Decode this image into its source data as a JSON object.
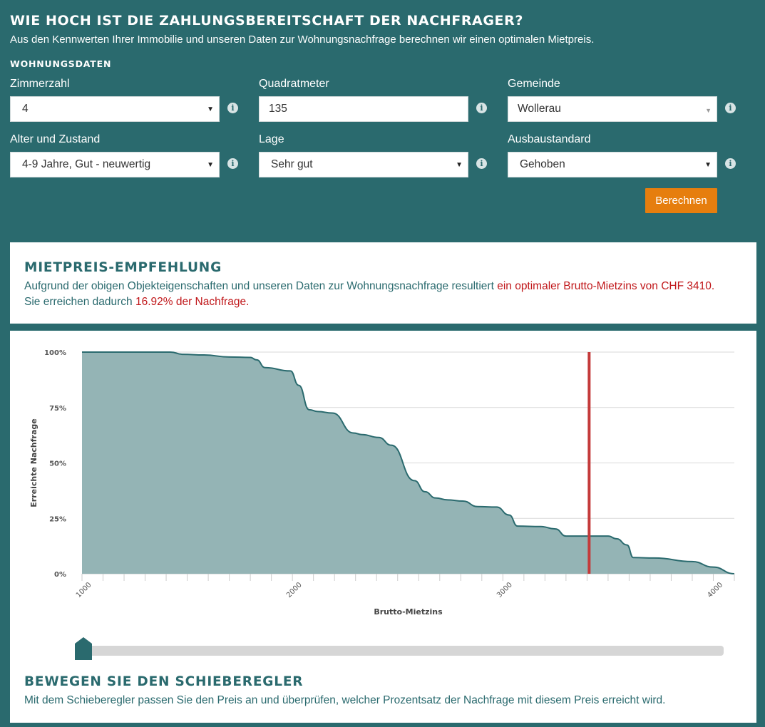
{
  "header": {
    "title": "WIE HOCH IST DIE ZAHLUNGSBEREITSCHAFT DER NACHFRAGER?",
    "subtitle": "Aus den Kennwerten Ihrer Immobilie und unseren Daten zur Wohnungsnachfrage berechnen wir einen optimalen Mietpreis.",
    "section_label": "WOHNUNGSDATEN"
  },
  "form": {
    "zimmerzahl": {
      "label": "Zimmerzahl",
      "value": "4"
    },
    "quadratmeter": {
      "label": "Quadratmeter",
      "value": "135"
    },
    "gemeinde": {
      "label": "Gemeinde",
      "value": "Wollerau"
    },
    "alter": {
      "label": "Alter und Zustand",
      "value": "4-9 Jahre, Gut - neuwertig"
    },
    "lage": {
      "label": "Lage",
      "value": "Sehr gut"
    },
    "ausbau": {
      "label": "Ausbaustandard",
      "value": "Gehoben"
    },
    "info_glyph": "i",
    "calc_button": "Berechnen"
  },
  "recommendation": {
    "heading": "MIETPREIS-EMPFEHLUNG",
    "text_1": "Aufgrund der obigen Objekteigenschaften und unseren Daten zur Wohnungsnachfrage resultiert ",
    "text_1_red": "ein optimaler Brutto-Mietzins von CHF 3410.",
    "text_2": "Sie erreichen dadurch ",
    "text_2_red": "16.92% der Nachfrage."
  },
  "slider_section": {
    "heading": "BEWEGEN SIE DEN SCHIEBEREGLER",
    "text": "Mit dem Schieberegler passen Sie den Preis an und überprüfen, welcher Prozentsatz der Nachfrage mit diesem Preis erreicht wird.",
    "value_fraction": 0
  },
  "colors": {
    "background": "#2a6a6e",
    "accent_orange": "#e67e0e",
    "highlight_red": "#c0171a",
    "area_fill": "#94b4b5",
    "area_line": "#2a6a6e",
    "marker": "#c43a3a"
  },
  "chart_data": {
    "type": "area",
    "xlabel": "Brutto-Mietzins",
    "ylabel": "Erreichte Nachfrage",
    "xlim": [
      1000,
      4100
    ],
    "ylim": [
      0,
      100
    ],
    "x_ticks": [
      1000,
      2000,
      3000,
      4000
    ],
    "y_ticks": [
      {
        "value": 100,
        "label": "100%"
      },
      {
        "value": 75,
        "label": "75%"
      },
      {
        "value": 50,
        "label": "50%"
      },
      {
        "value": 25,
        "label": "25%"
      },
      {
        "value": 0,
        "label": "0%"
      }
    ],
    "grid": true,
    "marker_x": 3410,
    "series": [
      {
        "x": [
          1000,
          1420,
          1480,
          1580,
          1700,
          1800,
          1830,
          1870,
          1990,
          2030,
          2080,
          2120,
          2190,
          2290,
          2330,
          2410,
          2470,
          2580,
          2630,
          2680,
          2740,
          2810,
          2880,
          2970,
          3030,
          3070,
          3180,
          3250,
          3300,
          3500,
          3540,
          3590,
          3620,
          3720,
          3900,
          4000,
          4100
        ],
        "y": [
          100,
          100,
          99,
          98.7,
          97.8,
          97.6,
          96.5,
          93,
          91.5,
          85,
          74,
          73.2,
          72.5,
          63.5,
          62.8,
          61.5,
          58,
          42,
          37,
          34.2,
          33.3,
          32.8,
          30.3,
          30.1,
          26.5,
          21.5,
          21.3,
          20.2,
          17,
          17,
          15.8,
          13,
          7.3,
          7.1,
          5.5,
          3,
          0
        ]
      }
    ]
  }
}
